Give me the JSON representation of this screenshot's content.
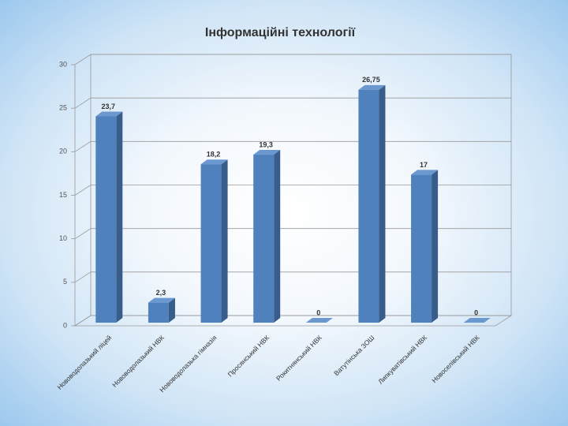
{
  "chart_data": {
    "type": "bar",
    "title": "Інформаційні технології",
    "categories": [
      "Нововодолазький ліцей",
      "Нововодолазький НВК",
      "Нововодолазька гімназія",
      "Просянський НВК",
      "Рокитнянський НВК",
      "Ватутінська ЗОШ",
      "Липкуватівський НВК",
      "Новоселівський НВК"
    ],
    "values": [
      23.7,
      2.3,
      18.2,
      19.3,
      0,
      26.75,
      17,
      0
    ],
    "value_labels": [
      "23,7",
      "2,3",
      "18,2",
      "19,3",
      "0",
      "26,75",
      "17",
      "0"
    ],
    "color": "#4f81bd",
    "ylim": [
      0,
      30
    ],
    "yticks": [
      0,
      5,
      10,
      15,
      20,
      25,
      30
    ],
    "grid": true
  }
}
